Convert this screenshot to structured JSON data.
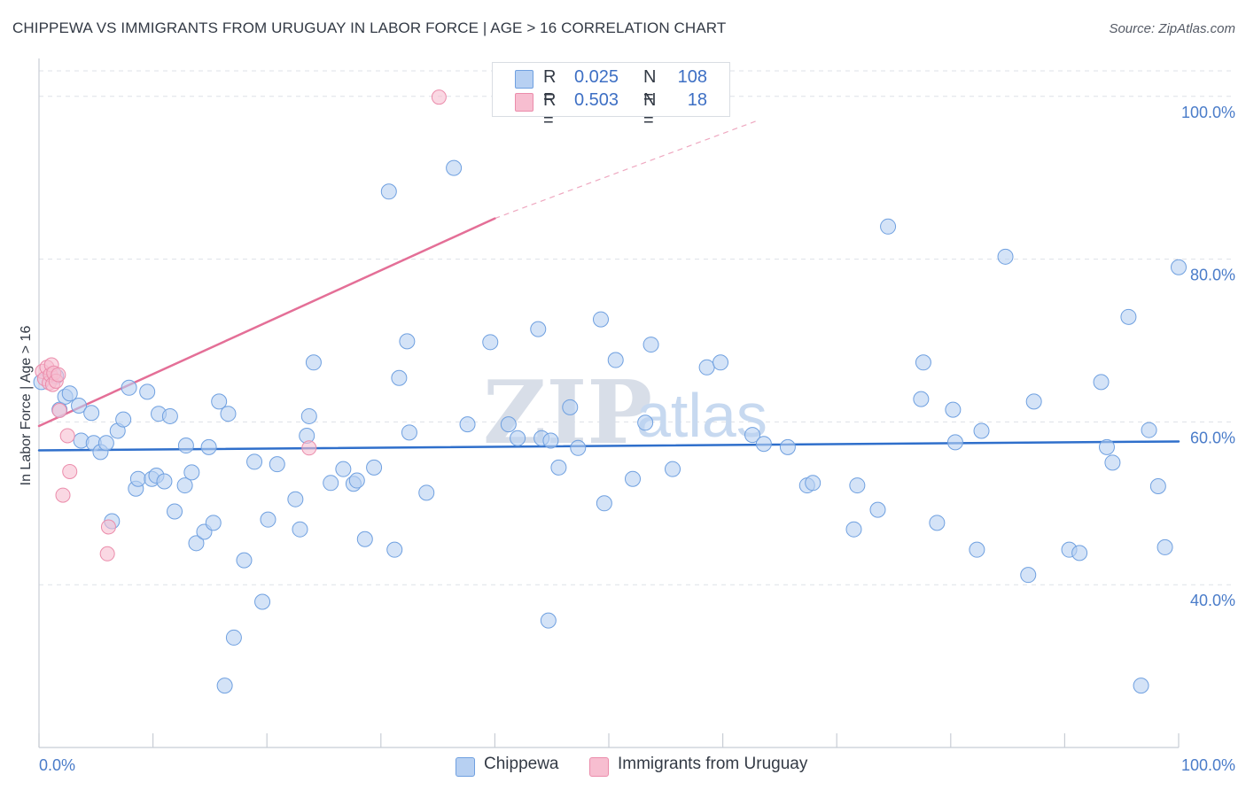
{
  "header": {
    "title": "CHIPPEWA VS IMMIGRANTS FROM URUGUAY IN LABOR FORCE | AGE > 16 CORRELATION CHART",
    "source": "Source: ZipAtlas.com"
  },
  "watermark": {
    "zip": "ZIP",
    "atlas": "atlas"
  },
  "legend": {
    "rows": [
      {
        "swatch_color": "#b7d0f2",
        "r_label": "R =",
        "r_value": "0.025",
        "n_label": "N =",
        "n_value": "108"
      },
      {
        "swatch_color": "#f7bed0",
        "r_label": "R =",
        "r_value": "0.503",
        "n_label": "N =",
        "n_value": "18"
      }
    ]
  },
  "bottom_legend": {
    "items": [
      {
        "label": "Chippewa",
        "color": "#b7d0f2"
      },
      {
        "label": "Immigrants from Uruguay",
        "color": "#f7bed0"
      }
    ]
  },
  "chart_data": {
    "type": "scatter",
    "title": "CHIPPEWA VS IMMIGRANTS FROM URUGUAY IN LABOR FORCE | AGE > 16 CORRELATION CHART",
    "xlabel": "",
    "ylabel": "In Labor Force | Age > 16",
    "xlim": [
      0,
      100
    ],
    "ylim": [
      20,
      104
    ],
    "x_tick_labels": [
      "0.0%",
      "100.0%"
    ],
    "y_ticks": [
      40,
      60,
      80,
      100
    ],
    "y_tick_labels": [
      "40.0%",
      "60.0%",
      "80.0%",
      "100.0%"
    ],
    "grid": true,
    "series": [
      {
        "name": "Chippewa",
        "color": "#6fa0e0",
        "fill": "#b7d0f2",
        "trend": {
          "x": [
            0,
            100
          ],
          "y": [
            56.5,
            57.6
          ],
          "color": "#2f6fcb"
        },
        "points": [
          [
            0.2,
            64.9
          ],
          [
            1.5,
            65.6
          ],
          [
            1.8,
            61.5
          ],
          [
            2.3,
            63.1
          ],
          [
            2.7,
            63.5
          ],
          [
            3.5,
            62.0
          ],
          [
            3.7,
            57.7
          ],
          [
            4.6,
            61.1
          ],
          [
            4.8,
            57.4
          ],
          [
            5.4,
            56.3
          ],
          [
            5.9,
            57.4
          ],
          [
            6.4,
            47.8
          ],
          [
            6.9,
            58.9
          ],
          [
            7.4,
            60.3
          ],
          [
            7.9,
            64.2
          ],
          [
            8.5,
            51.8
          ],
          [
            8.7,
            53.0
          ],
          [
            9.5,
            63.7
          ],
          [
            9.9,
            53.0
          ],
          [
            10.3,
            53.4
          ],
          [
            10.5,
            61.0
          ],
          [
            11.0,
            52.7
          ],
          [
            11.5,
            60.7
          ],
          [
            11.9,
            49.0
          ],
          [
            12.8,
            52.2
          ],
          [
            12.9,
            57.1
          ],
          [
            13.4,
            53.8
          ],
          [
            13.8,
            45.1
          ],
          [
            14.5,
            46.5
          ],
          [
            14.9,
            56.9
          ],
          [
            15.3,
            47.6
          ],
          [
            15.8,
            62.5
          ],
          [
            16.3,
            27.6
          ],
          [
            16.6,
            61.0
          ],
          [
            17.1,
            33.5
          ],
          [
            18.0,
            43.0
          ],
          [
            18.9,
            55.1
          ],
          [
            19.6,
            37.9
          ],
          [
            20.1,
            48.0
          ],
          [
            20.9,
            54.8
          ],
          [
            22.5,
            50.5
          ],
          [
            22.9,
            46.8
          ],
          [
            23.5,
            58.3
          ],
          [
            23.7,
            60.7
          ],
          [
            24.1,
            67.3
          ],
          [
            25.6,
            52.5
          ],
          [
            26.7,
            54.2
          ],
          [
            27.6,
            52.4
          ],
          [
            27.9,
            52.8
          ],
          [
            28.6,
            45.6
          ],
          [
            29.4,
            54.4
          ],
          [
            30.7,
            88.3
          ],
          [
            31.2,
            44.3
          ],
          [
            31.6,
            65.4
          ],
          [
            32.3,
            69.9
          ],
          [
            32.5,
            58.7
          ],
          [
            34.0,
            51.3
          ],
          [
            36.4,
            91.2
          ],
          [
            37.6,
            59.7
          ],
          [
            39.6,
            69.8
          ],
          [
            41.2,
            59.7
          ],
          [
            42.0,
            58.0
          ],
          [
            43.8,
            71.4
          ],
          [
            44.1,
            58.0
          ],
          [
            44.7,
            35.6
          ],
          [
            44.9,
            57.7
          ],
          [
            45.6,
            54.4
          ],
          [
            46.6,
            61.8
          ],
          [
            47.3,
            56.8
          ],
          [
            49.3,
            72.6
          ],
          [
            49.6,
            50.0
          ],
          [
            50.6,
            67.6
          ],
          [
            52.1,
            53.0
          ],
          [
            53.2,
            59.9
          ],
          [
            53.7,
            69.5
          ],
          [
            55.6,
            54.2
          ],
          [
            58.6,
            66.7
          ],
          [
            59.8,
            67.3
          ],
          [
            62.6,
            58.4
          ],
          [
            63.6,
            57.3
          ],
          [
            65.7,
            56.9
          ],
          [
            67.4,
            52.2
          ],
          [
            67.9,
            52.5
          ],
          [
            71.5,
            46.8
          ],
          [
            71.8,
            52.2
          ],
          [
            73.6,
            49.2
          ],
          [
            74.5,
            84.0
          ],
          [
            77.4,
            62.8
          ],
          [
            77.6,
            67.3
          ],
          [
            78.8,
            47.6
          ],
          [
            80.2,
            61.5
          ],
          [
            80.4,
            57.5
          ],
          [
            82.3,
            44.3
          ],
          [
            82.7,
            58.9
          ],
          [
            84.8,
            80.3
          ],
          [
            86.8,
            41.2
          ],
          [
            87.3,
            62.5
          ],
          [
            90.4,
            44.3
          ],
          [
            91.3,
            43.9
          ],
          [
            93.2,
            64.9
          ],
          [
            93.7,
            56.9
          ],
          [
            94.2,
            55.0
          ],
          [
            95.6,
            72.9
          ],
          [
            96.7,
            27.6
          ],
          [
            97.4,
            59.0
          ],
          [
            98.2,
            52.1
          ],
          [
            98.8,
            44.6
          ],
          [
            100.0,
            79.0
          ]
        ]
      },
      {
        "name": "Immigrants from Uruguay",
        "color": "#eb8cab",
        "fill": "#f7bed0",
        "trend": {
          "x": [
            0,
            40
          ],
          "y": [
            59.5,
            85.0
          ],
          "dash_to": [
            63.0,
            97.0
          ],
          "color": "#e46f97"
        },
        "points": [
          [
            0.3,
            66.2
          ],
          [
            0.5,
            65.3
          ],
          [
            0.7,
            66.7
          ],
          [
            0.9,
            64.8
          ],
          [
            1.0,
            65.8
          ],
          [
            1.1,
            67.0
          ],
          [
            1.2,
            64.6
          ],
          [
            1.3,
            66.0
          ],
          [
            1.5,
            65.0
          ],
          [
            1.7,
            65.8
          ],
          [
            1.8,
            61.4
          ],
          [
            2.1,
            51.0
          ],
          [
            2.5,
            58.3
          ],
          [
            2.7,
            53.9
          ],
          [
            6.1,
            47.1
          ],
          [
            6.0,
            43.8
          ],
          [
            23.7,
            56.8
          ],
          [
            35.1,
            99.9
          ]
        ]
      }
    ]
  }
}
